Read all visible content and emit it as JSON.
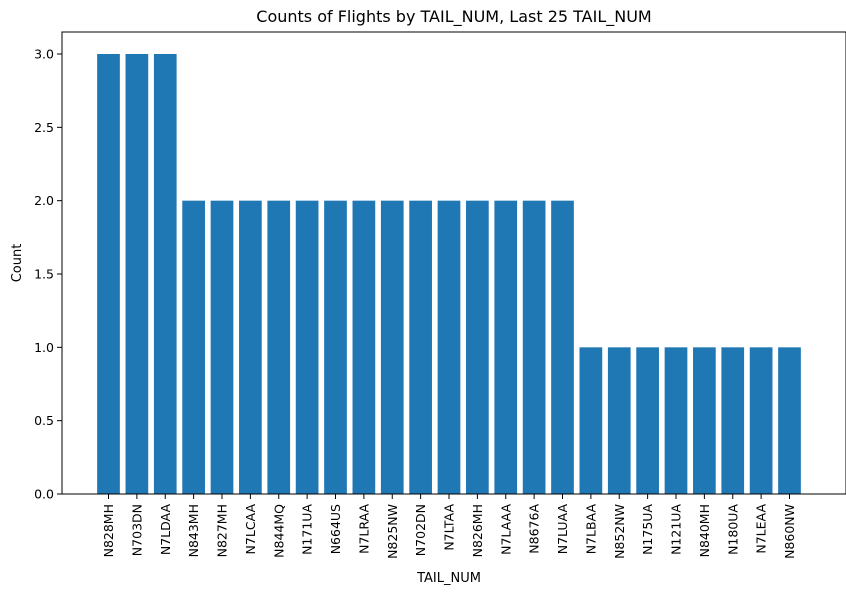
{
  "chart_data": {
    "type": "bar",
    "title": "Counts of Flights by TAIL_NUM, Last 25 TAIL_NUM",
    "xlabel": "TAIL_NUM",
    "ylabel": "Count",
    "ylim": [
      0,
      3.15
    ],
    "yticks": [
      "0.0",
      "0.5",
      "1.0",
      "1.5",
      "2.0",
      "2.5",
      "3.0"
    ],
    "categories": [
      "N828MH",
      "N703DN",
      "N7LDAA",
      "N843MH",
      "N827MH",
      "N7LCAA",
      "N844MQ",
      "N171UA",
      "N664US",
      "N7LRAA",
      "N825NW",
      "N702DN",
      "N7LTAA",
      "N826MH",
      "N7LAAA",
      "N8676A",
      "N7LUAA",
      "N7LBAA",
      "N852NW",
      "N175UA",
      "N121UA",
      "N840MH",
      "N180UA",
      "N7LEAA",
      "N860NW"
    ],
    "values": [
      3,
      3,
      3,
      2,
      2,
      2,
      2,
      2,
      2,
      2,
      2,
      2,
      2,
      2,
      2,
      2,
      2,
      1,
      1,
      1,
      1,
      1,
      1,
      1,
      1
    ],
    "bar_color": "#1f77b4",
    "grid": false,
    "legend": "none"
  }
}
